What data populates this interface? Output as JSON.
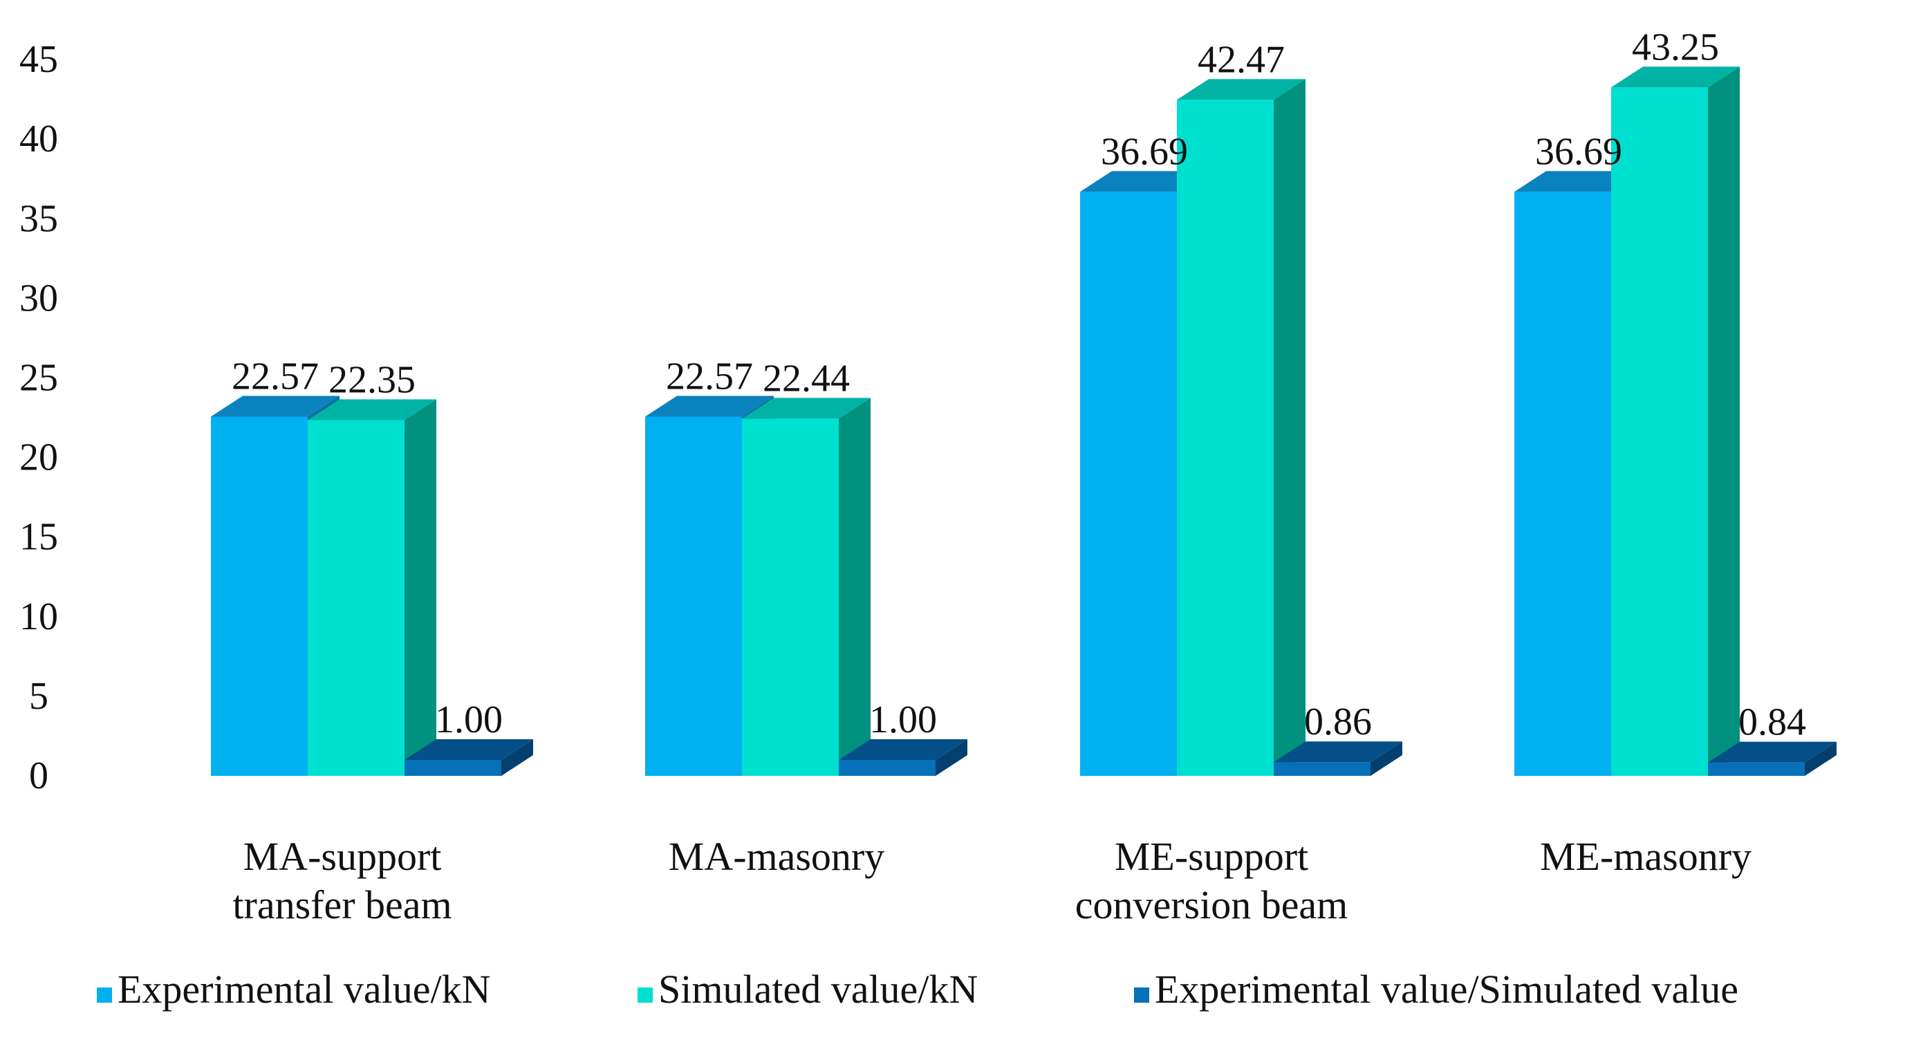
{
  "chart_data": {
    "type": "bar",
    "title": "",
    "xlabel": "",
    "ylabel": "",
    "ylim": [
      0,
      45
    ],
    "yticks": [
      "0",
      "5",
      "10",
      "15",
      "20",
      "25",
      "30",
      "35",
      "40",
      "45"
    ],
    "grid": false,
    "legend_position": "bottom",
    "categories": [
      [
        "MA-support",
        "transfer beam"
      ],
      [
        "MA-masonry"
      ],
      [
        "ME-support",
        "conversion beam"
      ],
      [
        "ME-masonry"
      ]
    ],
    "series": [
      {
        "name": "Experimental value/kN",
        "values": [
          22.57,
          22.57,
          36.69,
          36.69
        ],
        "labels": [
          "22.57",
          "22.57",
          "36.69",
          "36.69"
        ],
        "color": "#00B0F0",
        "top_color": "#0A82BE",
        "side_color": "#0A6E9E"
      },
      {
        "name": "Simulated value/kN",
        "values": [
          22.35,
          22.44,
          42.47,
          43.25
        ],
        "labels": [
          "22.35",
          "22.44",
          "42.47",
          "43.25"
        ],
        "color": "#00E0D0",
        "top_color": "#00B3A5",
        "side_color": "#00917F"
      },
      {
        "name": "Experimental value/Simulated value",
        "values": [
          1.0,
          1.0,
          0.86,
          0.84
        ],
        "labels": [
          "1.00",
          "1.00",
          "0.86",
          "0.84"
        ],
        "color": "#0670B8",
        "top_color": "#054F88",
        "side_color": "#04406F"
      }
    ]
  }
}
